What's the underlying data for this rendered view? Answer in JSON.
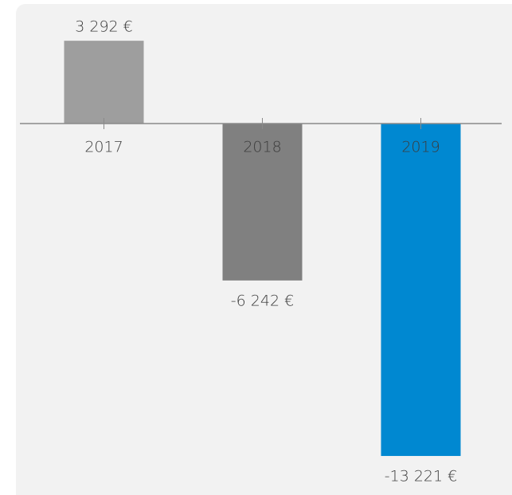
{
  "chart_data": {
    "type": "bar",
    "categories": [
      "2017",
      "2018",
      "2019"
    ],
    "values": [
      3292,
      -6242,
      -13221
    ],
    "value_labels": [
      "3 292 €",
      "-6 242 €",
      "-13 221 €"
    ],
    "colors": [
      "#9e9e9e",
      "#808080",
      "#0088d1"
    ],
    "ylim": [
      -14000,
      4000
    ]
  }
}
